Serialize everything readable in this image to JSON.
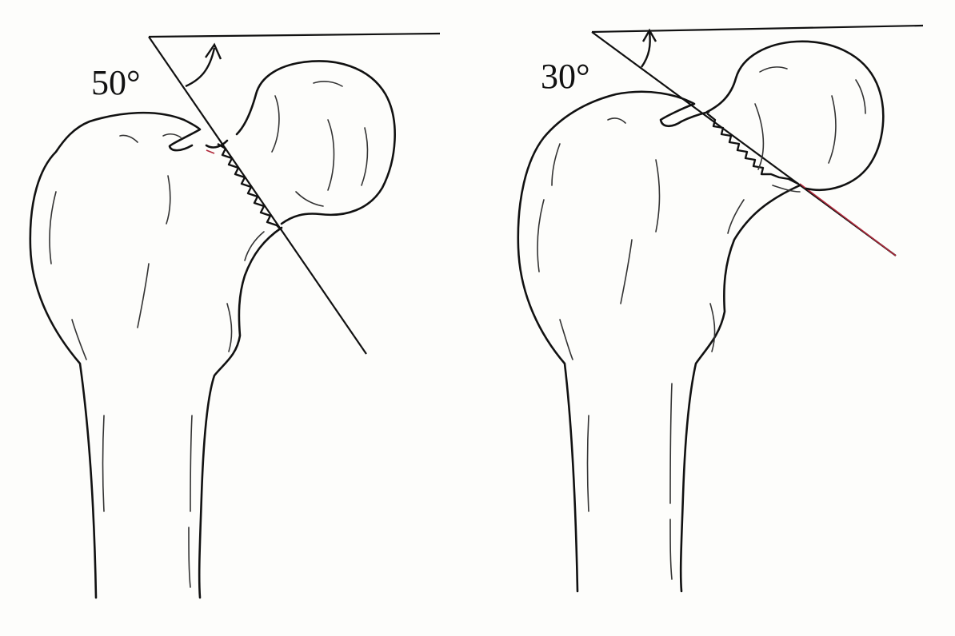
{
  "diagram": {
    "panels": [
      {
        "id": "left",
        "angle_label": "50°"
      },
      {
        "id": "right",
        "angle_label": "30°"
      }
    ]
  },
  "colors": {
    "ink": "#111111",
    "background": "#fdfdfb",
    "accent_tint": "#b0283a"
  },
  "icons": [
    "angle-arrow-icon"
  ]
}
